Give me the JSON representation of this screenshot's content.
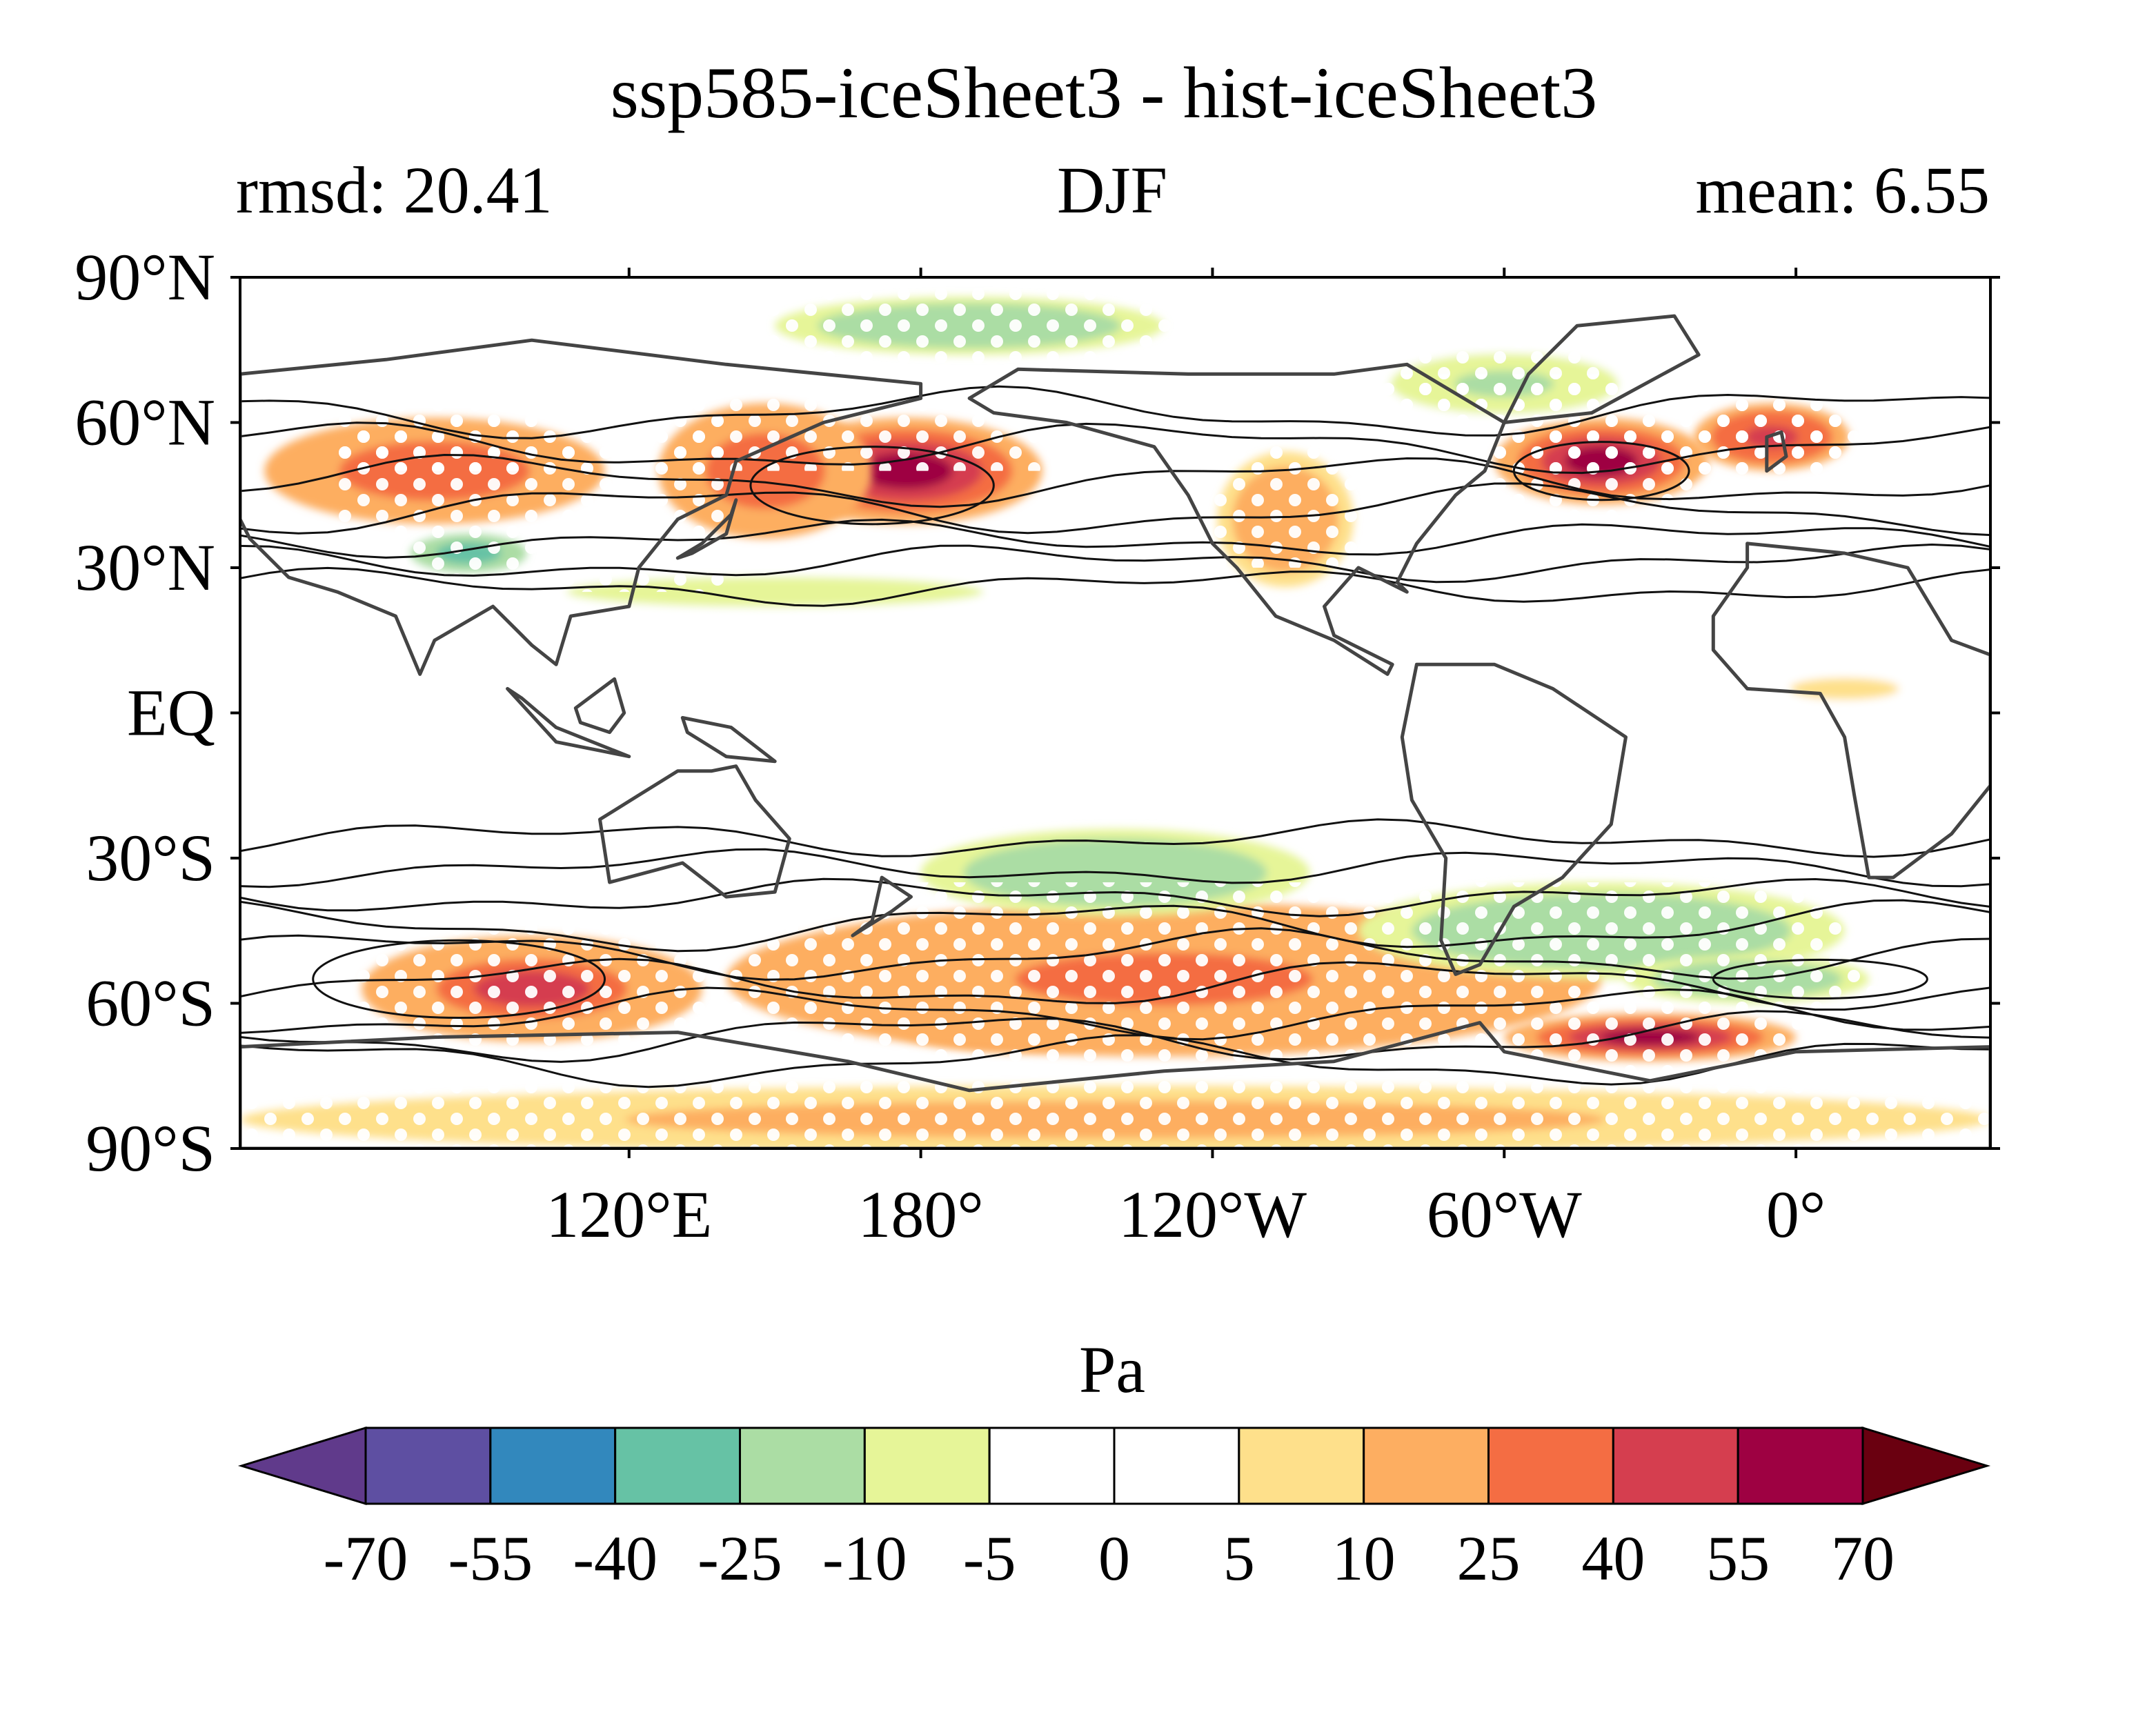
{
  "header": {
    "title": "ssp585-iceSheet3 - hist-iceSheet3",
    "left_label": "rmsd: 20.41",
    "center_label": "DJF",
    "right_label": "mean: 6.55"
  },
  "map": {
    "projection": "equirectangular",
    "lon_range": [
      40,
      400
    ],
    "lat_range": [
      -90,
      90
    ],
    "lat_ticks": [
      {
        "value": 90,
        "label": "90°N"
      },
      {
        "value": 60,
        "label": "60°N"
      },
      {
        "value": 30,
        "label": "30°N"
      },
      {
        "value": 0,
        "label": "EQ"
      },
      {
        "value": -30,
        "label": "30°S"
      },
      {
        "value": -60,
        "label": "60°S"
      },
      {
        "value": -90,
        "label": "90°S"
      }
    ],
    "lon_ticks": [
      {
        "value": 120,
        "label": "120°E"
      },
      {
        "value": 180,
        "label": "180°"
      },
      {
        "value": 240,
        "label": "120°W"
      },
      {
        "value": 300,
        "label": "60°W"
      },
      {
        "value": 360,
        "label": "0°"
      }
    ],
    "stippling": "white dots mark significant regions",
    "anomaly_blobs": [
      {
        "lon": 177,
        "lat": 50,
        "rx": 28,
        "ry": 11,
        "value": 62
      },
      {
        "lon": 148,
        "lat": 50,
        "rx": 22,
        "ry": 14,
        "value": 35
      },
      {
        "lon": 320,
        "lat": 52,
        "rx": 22,
        "ry": 9,
        "value": 60
      },
      {
        "lon": 355,
        "lat": 57,
        "rx": 16,
        "ry": 7,
        "value": 45
      },
      {
        "lon": 80,
        "lat": 50,
        "rx": 35,
        "ry": 11,
        "value": 32
      },
      {
        "lon": 255,
        "lat": 40,
        "rx": 14,
        "ry": 14,
        "value": 22
      },
      {
        "lon": 190,
        "lat": 80,
        "rx": 40,
        "ry": 6,
        "value": -22
      },
      {
        "lon": 300,
        "lat": 68,
        "rx": 30,
        "ry": 8,
        "value": -12
      },
      {
        "lon": 87,
        "lat": 33,
        "rx": 12,
        "ry": 4,
        "value": -40
      },
      {
        "lon": 150,
        "lat": 25,
        "rx": 55,
        "ry": 4,
        "value": -10
      },
      {
        "lon": 200,
        "lat": -62,
        "rx": 30,
        "ry": 8,
        "value": 65
      },
      {
        "lon": 330,
        "lat": -67,
        "rx": 30,
        "ry": 5,
        "value": 65
      },
      {
        "lon": 100,
        "lat": -57,
        "rx": 35,
        "ry": 11,
        "value": 40
      },
      {
        "lon": 230,
        "lat": -55,
        "rx": 90,
        "ry": 16,
        "value": 30
      },
      {
        "lon": 220,
        "lat": -33,
        "rx": 40,
        "ry": 9,
        "value": -22
      },
      {
        "lon": 320,
        "lat": -45,
        "rx": 50,
        "ry": 10,
        "value": -18
      },
      {
        "lon": 350,
        "lat": -55,
        "rx": 25,
        "ry": 5,
        "value": -25
      },
      {
        "lon": 220,
        "lat": -84,
        "rx": 180,
        "ry": 7,
        "value": 15
      },
      {
        "lon": 370,
        "lat": 5,
        "rx": 20,
        "ry": 4,
        "value": 7
      }
    ]
  },
  "colorbar": {
    "label": "Pa",
    "levels": [
      "-70",
      "-55",
      "-40",
      "-25",
      "-10",
      "-5",
      "0",
      "5",
      "10",
      "25",
      "40",
      "55",
      "70"
    ],
    "colors": [
      "#5e4fa2",
      "#3288bd",
      "#66c2a5",
      "#abdda4",
      "#e6f598",
      "#ffffff",
      "#ffffff",
      "#fee08b",
      "#fdae61",
      "#f46d43",
      "#d53e4f",
      "#9e0142"
    ],
    "under_color": "#603a8b",
    "over_color": "#6a0010"
  }
}
